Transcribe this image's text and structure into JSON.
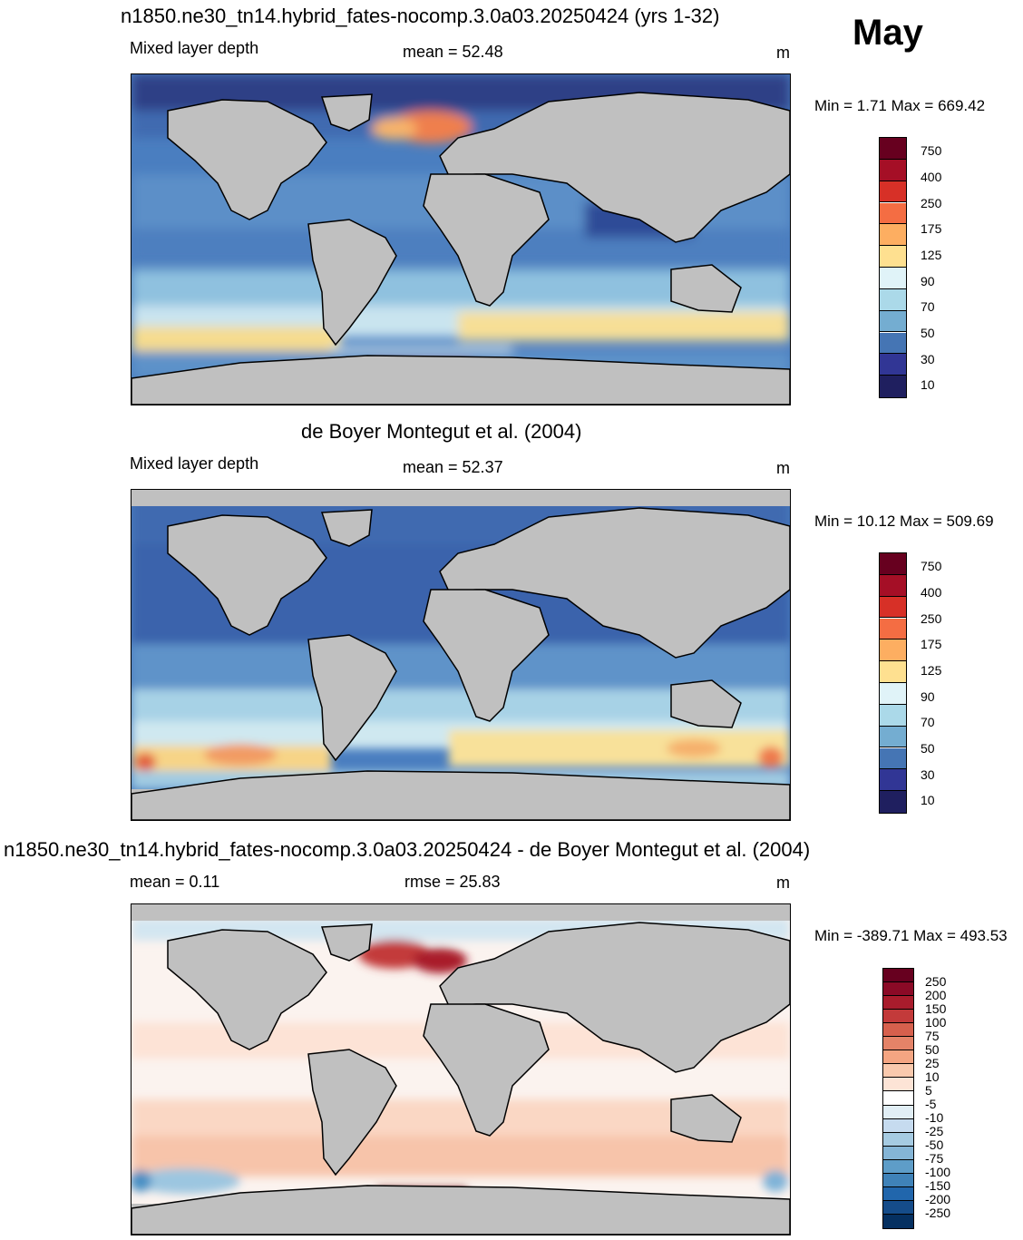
{
  "header": {
    "month": "May"
  },
  "panels": [
    {
      "id": "model",
      "title": "n1850.ne30_tn14.hybrid_fates-nocomp.3.0a03.20250424 (yrs 1-32)",
      "left_label": "Mixed layer depth",
      "center_label": "mean =  52.48",
      "units": "m",
      "minmax": "Min =   1.71 Max = 669.42",
      "colorbar": {
        "labels": [
          "750",
          "400",
          "250",
          "175",
          "125",
          "90",
          "70",
          "50",
          "30",
          "10"
        ],
        "colors": [
          "#67001f",
          "#a50f26",
          "#d73027",
          "#f46d43",
          "#fdae61",
          "#fee090",
          "#e0f3f8",
          "#abd9e9",
          "#74add1",
          "#4575b4",
          "#313695",
          "#1f1f5f"
        ]
      }
    },
    {
      "id": "obs",
      "title": "de Boyer Montegut et al. (2004)",
      "left_label": "Mixed layer depth",
      "center_label": "mean =  52.37",
      "units": "m",
      "minmax": "Min =  10.12 Max = 509.69",
      "colorbar": {
        "labels": [
          "750",
          "400",
          "250",
          "175",
          "125",
          "90",
          "70",
          "50",
          "30",
          "10"
        ],
        "colors": [
          "#67001f",
          "#a50f26",
          "#d73027",
          "#f46d43",
          "#fdae61",
          "#fee090",
          "#e0f3f8",
          "#abd9e9",
          "#74add1",
          "#4575b4",
          "#313695",
          "#1f1f5f"
        ]
      }
    },
    {
      "id": "diff",
      "title": "n1850.ne30_tn14.hybrid_fates-nocomp.3.0a03.20250424 - de Boyer Montegut et al. (2004)",
      "left_label": "mean =   0.11",
      "center_label": "rmse =  25.83",
      "units": "m",
      "minmax": "Min = -389.71 Max = 493.53",
      "colorbar": {
        "labels": [
          "250",
          "200",
          "150",
          "100",
          "75",
          "50",
          "25",
          "10",
          "5",
          "-5",
          "-10",
          "-25",
          "-50",
          "-75",
          "-100",
          "-150",
          "-200",
          "-250"
        ],
        "colors": [
          "#67001f",
          "#8b0a26",
          "#a91c2c",
          "#c33a3a",
          "#d6604d",
          "#e48368",
          "#f4a582",
          "#f9c9ad",
          "#fde4d6",
          "#ffffff",
          "#e1eef5",
          "#c6dbef",
          "#a6cbe2",
          "#85b5d6",
          "#5e9dc8",
          "#3f82b8",
          "#2166ac",
          "#154c8a",
          "#053061"
        ]
      }
    }
  ]
}
